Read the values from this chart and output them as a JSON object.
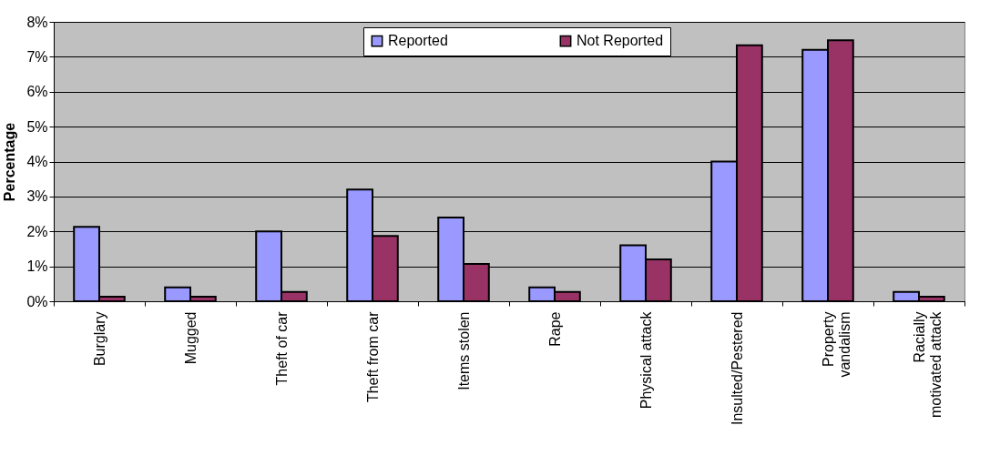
{
  "chart_data": {
    "type": "bar",
    "ylabel": "Percentage",
    "categories": [
      "Burglary",
      "Mugged",
      "Theft of car",
      "Theft from car",
      "Items stolen",
      "Rape",
      "Physical attack",
      "Insulted/Pestered",
      "Property vandalism",
      "Racially motivated attack"
    ],
    "series": [
      {
        "name": "Reported",
        "color": "#9999ff",
        "values": [
          2.13,
          0.4,
          2.0,
          3.2,
          2.4,
          0.4,
          1.6,
          4.0,
          7.2,
          0.27
        ]
      },
      {
        "name": "Not Reported",
        "color": "#993366",
        "values": [
          0.13,
          0.13,
          0.27,
          1.87,
          1.07,
          0.27,
          1.2,
          7.33,
          7.47,
          0.13
        ]
      }
    ],
    "ylim": [
      0,
      8
    ],
    "yticks": [
      {
        "value": 0,
        "label": "0%"
      },
      {
        "value": 1,
        "label": "1%"
      },
      {
        "value": 2,
        "label": "2%"
      },
      {
        "value": 3,
        "label": "3%"
      },
      {
        "value": 4,
        "label": "4%"
      },
      {
        "value": 5,
        "label": "5%"
      },
      {
        "value": 6,
        "label": "6%"
      },
      {
        "value": 7,
        "label": "7%"
      },
      {
        "value": 8,
        "label": "8%"
      }
    ],
    "grid": "y",
    "legend": "top"
  }
}
